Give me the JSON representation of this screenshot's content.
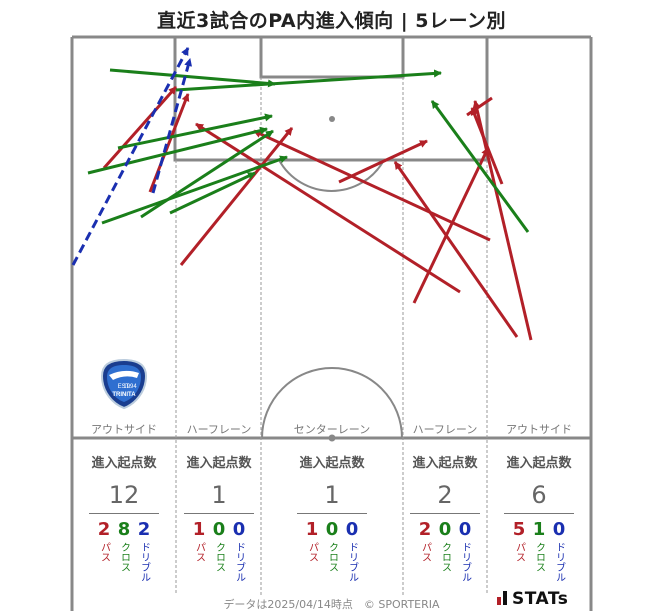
{
  "title": "直近3試合のPA内進入傾向 | 5レーン別",
  "colors": {
    "pass": "#b22028",
    "cross": "#1a7f1a",
    "dribble": "#1a2fb0",
    "line": "#888888"
  },
  "team_emblem": {
    "text_top": "EST.",
    "text_year": "1994",
    "text_name": "TRINITA"
  },
  "lanes": [
    {
      "name": "アウトサイド",
      "stat_head": "進入起点数",
      "total": "12",
      "pass": "2",
      "cross": "8",
      "dribble": "2"
    },
    {
      "name": "ハーフレーン",
      "stat_head": "進入起点数",
      "total": "1",
      "pass": "1",
      "cross": "0",
      "dribble": "0"
    },
    {
      "name": "センターレーン",
      "stat_head": "進入起点数",
      "total": "1",
      "pass": "1",
      "cross": "0",
      "dribble": "0"
    },
    {
      "name": "ハーフレーン",
      "stat_head": "進入起点数",
      "total": "2",
      "pass": "2",
      "cross": "0",
      "dribble": "0"
    },
    {
      "name": "アウトサイド",
      "stat_head": "進入起点数",
      "total": "6",
      "pass": "5",
      "cross": "1",
      "dribble": "0"
    }
  ],
  "type_labels": {
    "pass": "パス",
    "cross": "クロス",
    "dribble": "ドリブル"
  },
  "footer": "データは2025/04/14時点　© SPORTERIA",
  "brand": "STATs"
}
